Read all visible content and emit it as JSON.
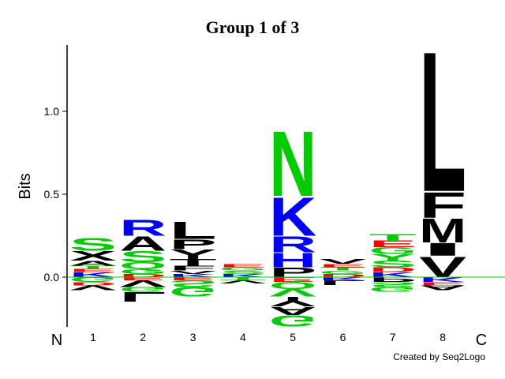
{
  "chart_data": {
    "type": "logo",
    "title": "Group 1 of 3",
    "y_label": "Bits",
    "n_label": "N",
    "c_label": "C",
    "credit": "Created by Seq2Logo",
    "categories": [
      "1",
      "2",
      "3",
      "4",
      "5",
      "6",
      "7",
      "8"
    ],
    "ylim": [
      -0.3,
      1.4
    ],
    "yticks": [
      {
        "value": 0,
        "label": "0.0"
      },
      {
        "value": 0.5,
        "label": "0.5"
      },
      {
        "value": 1,
        "label": "1.0"
      }
    ],
    "zero_line_color": "#00cc00",
    "stacks": [
      {
        "above": [
          {
            "letter": "K",
            "value": 0.03,
            "color": "#0000ff"
          },
          {
            "letter": "E",
            "value": 0.02,
            "color": "#ff0000"
          },
          {
            "letter": "T",
            "value": 0.02,
            "color": "#00cc00"
          },
          {
            "letter": "A",
            "value": 0.03,
            "color": "#000000"
          },
          {
            "letter": "X",
            "value": 0.06,
            "color": "#000000"
          },
          {
            "letter": "S",
            "value": 0.08,
            "color": "#00cc00"
          }
        ],
        "below": [
          {
            "letter": "G",
            "value": -0.03,
            "color": "#00cc00"
          },
          {
            "letter": "D",
            "value": -0.02,
            "color": "#ff0000"
          },
          {
            "letter": "V",
            "value": -0.03,
            "color": "#000000"
          }
        ]
      },
      {
        "above": [
          {
            "letter": "D",
            "value": 0.02,
            "color": "#ff0000"
          },
          {
            "letter": "G",
            "value": 0.03,
            "color": "#00cc00"
          },
          {
            "letter": "Q",
            "value": 0.04,
            "color": "#00cc00"
          },
          {
            "letter": "S",
            "value": 0.07,
            "color": "#00cc00"
          },
          {
            "letter": "A",
            "value": 0.09,
            "color": "#000000"
          },
          {
            "letter": "R",
            "value": 0.1,
            "color": "#0000ff"
          }
        ],
        "below": [
          {
            "letter": "E",
            "value": -0.02,
            "color": "#ff0000"
          },
          {
            "letter": "V",
            "value": -0.04,
            "color": "#000000"
          },
          {
            "letter": "G",
            "value": -0.03,
            "color": "#00cc00"
          },
          {
            "letter": "L",
            "value": -0.06,
            "color": "#000000"
          }
        ]
      },
      {
        "above": [
          {
            "letter": "K",
            "value": 0.02,
            "color": "#0000ff"
          },
          {
            "letter": "V",
            "value": 0.02,
            "color": "#000000"
          },
          {
            "letter": "F",
            "value": 0.03,
            "color": "#000000"
          },
          {
            "letter": "T",
            "value": 0.04,
            "color": "#000000"
          },
          {
            "letter": "Y",
            "value": 0.06,
            "color": "#000000"
          },
          {
            "letter": "P",
            "value": 0.06,
            "color": "#000000"
          },
          {
            "letter": "L",
            "value": 0.11,
            "color": "#000000"
          }
        ],
        "below": [
          {
            "letter": "E",
            "value": -0.02,
            "color": "#ff0000"
          },
          {
            "letter": "S",
            "value": -0.04,
            "color": "#00cc00"
          },
          {
            "letter": "G",
            "value": -0.06,
            "color": "#00cc00"
          }
        ]
      },
      {
        "above": [
          {
            "letter": "K",
            "value": 0.02,
            "color": "#0000ff"
          },
          {
            "letter": "S",
            "value": 0.02,
            "color": "#00cc00"
          },
          {
            "letter": "G",
            "value": 0.02,
            "color": "#00cc00"
          },
          {
            "letter": "E",
            "value": 0.02,
            "color": "#ff0000"
          }
        ],
        "below": [
          {
            "letter": "T",
            "value": -0.02,
            "color": "#00cc00"
          },
          {
            "letter": "V",
            "value": -0.02,
            "color": "#000000"
          }
        ]
      },
      {
        "above": [
          {
            "letter": "P",
            "value": 0.06,
            "color": "#000000"
          },
          {
            "letter": "H",
            "value": 0.09,
            "color": "#0000ff"
          },
          {
            "letter": "R",
            "value": 0.1,
            "color": "#0000ff"
          },
          {
            "letter": "K",
            "value": 0.24,
            "color": "#0000ff"
          },
          {
            "letter": "N",
            "value": 0.41,
            "color": "#00cc00"
          }
        ],
        "below": [
          {
            "letter": "E",
            "value": -0.03,
            "color": "#ff0000"
          },
          {
            "letter": "Q",
            "value": -0.04,
            "color": "#00cc00"
          },
          {
            "letter": "V",
            "value": -0.05,
            "color": "#00cc00"
          },
          {
            "letter": "Y",
            "value": -0.06,
            "color": "#000000"
          },
          {
            "letter": "A",
            "value": -0.05,
            "color": "#000000"
          },
          {
            "letter": "G",
            "value": -0.07,
            "color": "#00cc00"
          }
        ]
      },
      {
        "above": [
          {
            "letter": "D",
            "value": 0.02,
            "color": "#ff0000"
          },
          {
            "letter": "G",
            "value": 0.02,
            "color": "#00cc00"
          },
          {
            "letter": "T",
            "value": 0.02,
            "color": "#00cc00"
          },
          {
            "letter": "E",
            "value": 0.02,
            "color": "#ff0000"
          },
          {
            "letter": "V",
            "value": 0.03,
            "color": "#000000"
          }
        ],
        "below": [
          {
            "letter": "K",
            "value": -0.02,
            "color": "#0000ff"
          },
          {
            "letter": "L",
            "value": -0.03,
            "color": "#000000"
          }
        ]
      },
      {
        "above": [
          {
            "letter": "K",
            "value": 0.03,
            "color": "#0000ff"
          },
          {
            "letter": "D",
            "value": 0.03,
            "color": "#ff0000"
          },
          {
            "letter": "S",
            "value": 0.04,
            "color": "#00cc00"
          },
          {
            "letter": "Y",
            "value": 0.04,
            "color": "#00cc00"
          },
          {
            "letter": "G",
            "value": 0.04,
            "color": "#00cc00"
          },
          {
            "letter": "E",
            "value": 0.04,
            "color": "#ff0000"
          },
          {
            "letter": "T",
            "value": 0.04,
            "color": "#00cc00"
          }
        ],
        "below": [
          {
            "letter": "P",
            "value": -0.03,
            "color": "#000000"
          },
          {
            "letter": "S",
            "value": -0.03,
            "color": "#00cc00"
          },
          {
            "letter": "G",
            "value": -0.03,
            "color": "#00cc00"
          }
        ]
      },
      {
        "above": [
          {
            "letter": "V",
            "value": 0.13,
            "color": "#000000"
          },
          {
            "letter": "I",
            "value": 0.08,
            "color": "#000000"
          },
          {
            "letter": "M",
            "value": 0.15,
            "color": "#000000"
          },
          {
            "letter": "F",
            "value": 0.16,
            "color": "#000000"
          },
          {
            "letter": "L",
            "value": 0.88,
            "color": "#000000"
          }
        ],
        "below": [
          {
            "letter": "K",
            "value": -0.03,
            "color": "#0000ff"
          },
          {
            "letter": "E",
            "value": -0.02,
            "color": "#ff0000"
          },
          {
            "letter": "A",
            "value": -0.03,
            "color": "#000000"
          }
        ]
      }
    ]
  }
}
